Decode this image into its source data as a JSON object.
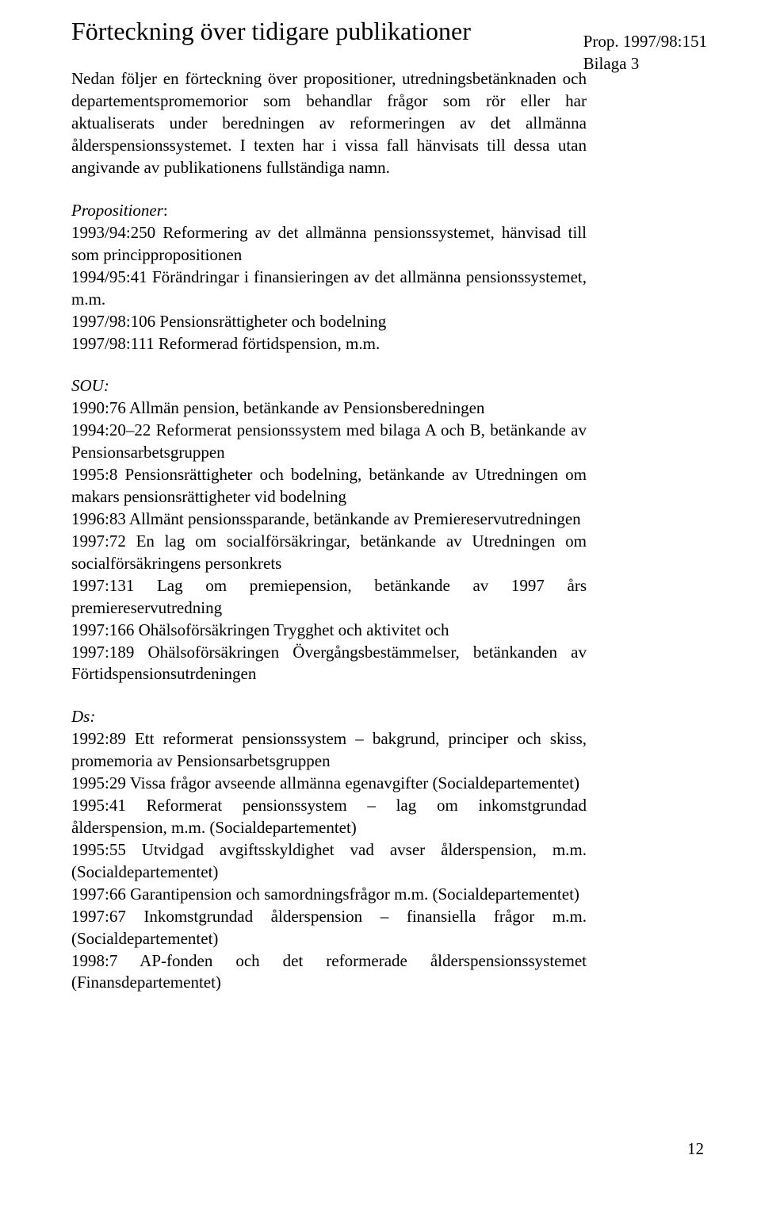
{
  "meta": {
    "line1": "Prop. 1997/98:151",
    "line2": "Bilaga 3"
  },
  "title": "Förteckning över tidigare publikationer",
  "intro": "Nedan följer en förteckning över propositioner, utredningsbetänknaden och departementspromemorior som behandlar frågor som rör eller har aktualiserats under beredningen av reformeringen av det allmänna ålderspensionssystemet. I texten har i vissa fall hänvisats till dessa utan angivande av publikationens fullständiga namn.",
  "sections": {
    "prop": {
      "head": "Propositioner",
      "colon": ":",
      "body": "1993/94:250 Reformering av det allmänna pensionssystemet, hänvisad till som princippropositionen\n1994/95:41 Förändringar i finansieringen av det allmänna pensionssystemet, m.m.\n1997/98:106 Pensionsrättigheter och bodelning\n1997/98:111 Reformerad förtidspension, m.m."
    },
    "sou": {
      "head": "SOU:",
      "body": "1990:76 Allmän pension, betänkande av Pensionsberedningen\n1994:20–22 Reformerat pensionssystem med bilaga A och B, betänkande av Pensionsarbetsgruppen\n1995:8 Pensionsrättigheter och bodelning, betänkande av Utredningen om makars pensionsrättigheter vid bodelning\n1996:83 Allmänt pensionssparande, betänkande av Premiereservutredningen\n1997:72 En lag om socialförsäkringar, betänkande av Utredningen om socialförsäkringens personkrets\n1997:131 Lag om premiepension, betänkande av 1997 års premiereservutredning\n1997:166 Ohälsoförsäkringen Trygghet och aktivitet och\n1997:189 Ohälsoförsäkringen Övergångsbestämmelser, betänkanden av Förtidspensionsutrdeningen"
    },
    "ds": {
      "head": "Ds:",
      "body": "1992:89 Ett reformerat pensionssystem – bakgrund, principer och skiss, promemoria av Pensionsarbetsgruppen\n1995:29 Vissa frågor avseende allmänna egenavgifter (Socialdepartementet)\n1995:41 Reformerat pensionssystem – lag om inkomstgrundad ålderspension, m.m. (Socialdepartementet)\n1995:55 Utvidgad avgiftsskyldighet vad avser ålderspension, m.m. (Socialdepartementet)\n1997:66 Garantipension och samordningsfrågor m.m. (Socialdepartementet)\n1997:67 Inkomstgrundad ålderspension – finansiella frågor m.m. (Socialdepartementet)\n1998:7 AP-fonden och det reformerade ålderspensionssystemet (Finansdepartementet)"
    }
  },
  "page_number": "12"
}
